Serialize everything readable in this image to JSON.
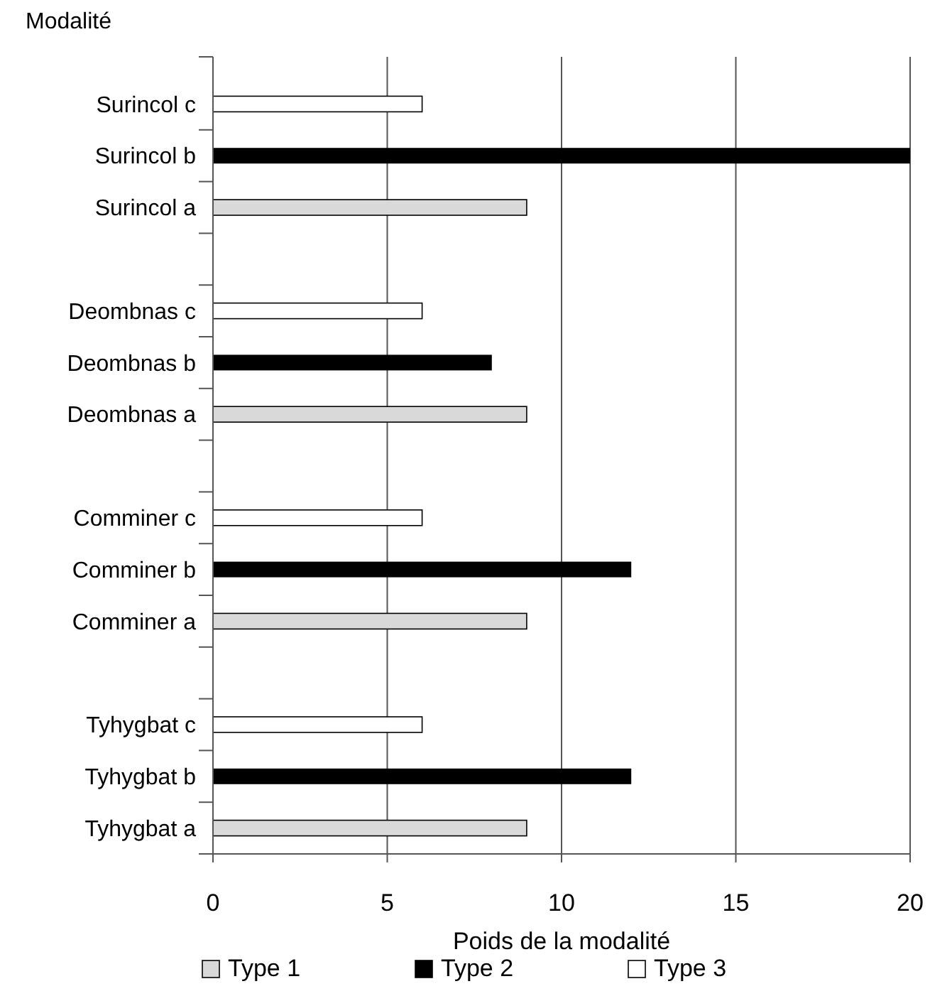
{
  "chart_data": {
    "type": "bar",
    "orientation": "horizontal",
    "ylabel": "Modalité",
    "xlabel": "Poids de la modalité",
    "categories": [
      "Surincol c",
      "Surincol b",
      "Surincol a",
      null,
      "Deombnas c",
      "Deombnas b",
      "Deombnas a",
      null,
      "Comminer c",
      "Comminer b",
      "Comminer a",
      null,
      "Tyhygbat c",
      "Tyhygbat b",
      "Tyhygbat a"
    ],
    "series": [
      {
        "name": "Type 1",
        "color": "#d9d9d9",
        "values": [
          null,
          null,
          9,
          null,
          null,
          null,
          9,
          null,
          null,
          null,
          9,
          null,
          null,
          null,
          9
        ]
      },
      {
        "name": "Type 2",
        "color": "#000000",
        "values": [
          null,
          20,
          null,
          null,
          null,
          8,
          null,
          null,
          null,
          12,
          null,
          null,
          null,
          12,
          null
        ]
      },
      {
        "name": "Type 3",
        "color": "#ffffff",
        "values": [
          6,
          null,
          null,
          null,
          6,
          null,
          null,
          null,
          6,
          null,
          null,
          null,
          6,
          null,
          null
        ]
      }
    ],
    "xlim": [
      0,
      20
    ],
    "xticks": [
      0,
      5,
      10,
      15,
      20
    ],
    "grid": "x",
    "legend": "bottom"
  }
}
